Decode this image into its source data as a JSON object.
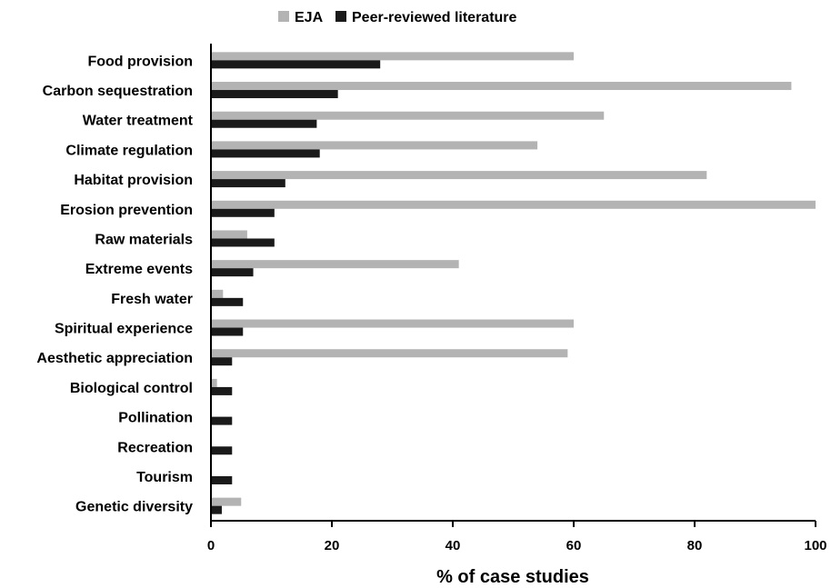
{
  "chart_data": {
    "type": "bar",
    "orientation": "horizontal",
    "categories": [
      "Food provision",
      "Carbon sequestration",
      "Water treatment",
      "Climate regulation",
      "Habitat provision",
      "Erosion prevention",
      "Raw materials",
      "Extreme events",
      "Fresh water",
      "Spiritual experience",
      "Aesthetic appreciation",
      "Biological control",
      "Pollination",
      "Recreation",
      "Tourism",
      "Genetic diversity"
    ],
    "series": [
      {
        "name": "EJA",
        "color": "#b3b3b3",
        "values": [
          60,
          96,
          65,
          54,
          82,
          100,
          6,
          41,
          2,
          60,
          59,
          1,
          0,
          0,
          0,
          5
        ]
      },
      {
        "name": "Peer-reviewed literature",
        "color": "#1a1a1a",
        "values": [
          28,
          21,
          17.5,
          18,
          12.3,
          10.5,
          10.5,
          7,
          5.3,
          5.3,
          3.5,
          3.5,
          3.5,
          3.5,
          3.5,
          1.8
        ]
      }
    ],
    "xlabel": "% of case studies",
    "ylabel": "",
    "xlim": [
      0,
      100
    ],
    "xticks": [
      0,
      20,
      40,
      60,
      80,
      100
    ],
    "grid": false,
    "legend_position": "top-center"
  }
}
